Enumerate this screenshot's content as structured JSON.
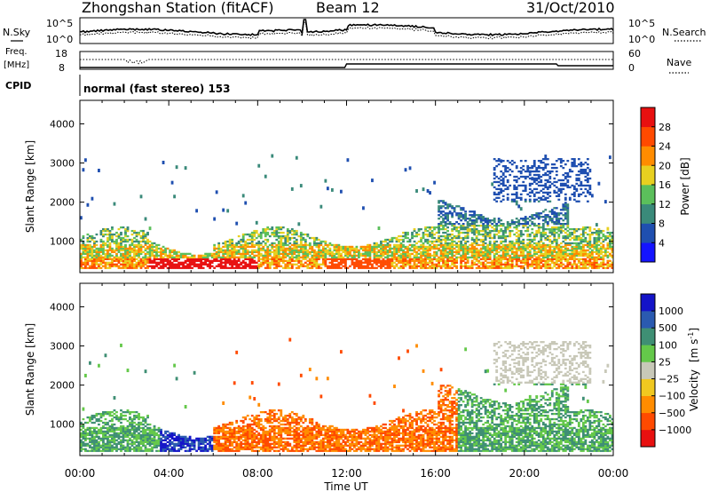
{
  "header": {
    "station": "Zhongshan Station (fitACF)",
    "beam": "Beam 12",
    "date": "31/Oct/2010"
  },
  "sky_panel": {
    "left_label": "N.Sky",
    "right_label": "N.Search",
    "left_ticks": [
      "10^5",
      "10^0"
    ],
    "right_ticks": [
      "10^5",
      "10^0"
    ]
  },
  "freq_panel": {
    "left_label_1": "Freq.",
    "left_label_2": "[MHz]",
    "right_label": "Nave",
    "left_ticks": [
      "18",
      "8"
    ],
    "right_ticks": [
      "60",
      "0"
    ]
  },
  "cpid": {
    "label": "CPID",
    "mode": "normal (fast stereo) 153"
  },
  "chart_data": [
    {
      "type": "heatmap",
      "ylabel": "Slant Range [km]",
      "xlabel": "Time UT",
      "x_ticks": [
        "00:00",
        "04:00",
        "08:00",
        "12:00",
        "16:00",
        "20:00",
        "00:00"
      ],
      "y_ticks": [
        1000,
        2000,
        3000,
        4000
      ],
      "ylim": [
        200,
        4600
      ],
      "xlim_hours": [
        0,
        24
      ],
      "colorbar": {
        "label": "Power [dB]",
        "ticks": [
          "4",
          "8",
          "12",
          "16",
          "20",
          "24",
          "28"
        ],
        "colors": [
          "#1414ff",
          "#1f4fb0",
          "#3a8a7a",
          "#5bbf5b",
          "#e8d020",
          "#ff8c00",
          "#ff4a00",
          "#e81010"
        ]
      }
    },
    {
      "type": "heatmap",
      "ylabel": "Slant Range [km]",
      "xlabel": "Time UT",
      "x_ticks": [
        "00:00",
        "04:00",
        "08:00",
        "12:00",
        "16:00",
        "20:00",
        "00:00"
      ],
      "y_ticks": [
        1000,
        2000,
        3000,
        4000
      ],
      "ylim": [
        200,
        4600
      ],
      "xlim_hours": [
        0,
        24
      ],
      "colorbar": {
        "label_main": "Velocity",
        "label_units": "[m s",
        "label_exp": "-1",
        "label_close": "]",
        "ticks": [
          "1000",
          "500",
          "100",
          "25",
          "−25",
          "−100",
          "−500",
          "−1000"
        ],
        "colors": [
          "#1414c8",
          "#2a5ab0",
          "#3f8f74",
          "#64c84a",
          "#c8c8b8",
          "#f0c820",
          "#ff8c00",
          "#ff4a00",
          "#e81010"
        ]
      }
    }
  ],
  "x_axis_title": "Time UT"
}
